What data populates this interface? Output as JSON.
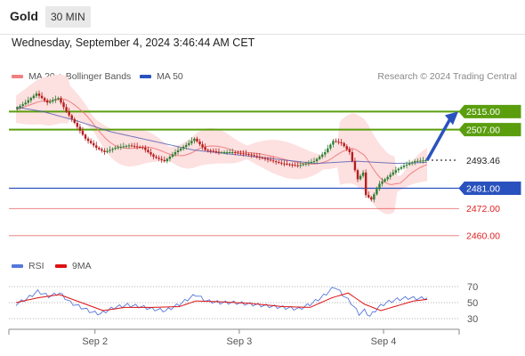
{
  "header": {
    "title": "Gold",
    "timeframe": "30 MIN"
  },
  "datetime": "Wednesday, September 4, 2024 3:46:44 AM CET",
  "legend": {
    "ma20": "MA 20 + Bollinger Bands",
    "ma50": "MA 50",
    "rsi": "RSI",
    "ma9": "9MA",
    "credit": "Research © 2024 Trading Central"
  },
  "colors": {
    "resistance": "#5a9e0e",
    "support": "#2a52be",
    "minor_support": "#e02020",
    "ma20": "#f08080",
    "ma50": "#4d5bb0",
    "bollinger_fill": "#fde0e0",
    "candle_up": "#2e7d32",
    "candle_down": "#b71c1c",
    "rsi": "#5577dd",
    "ma9": "#dd1111",
    "arrow": "#2a52be"
  },
  "chart_data": {
    "type": "candlestick",
    "y_range": [
      2452,
      2527
    ],
    "levels": [
      {
        "label": "2515.00",
        "value": 2515.0,
        "kind": "resistance"
      },
      {
        "label": "2507.00",
        "value": 2507.0,
        "kind": "resistance"
      },
      {
        "label": "2493.46",
        "value": 2493.46,
        "kind": "last"
      },
      {
        "label": "2481.00",
        "value": 2481.0,
        "kind": "support"
      },
      {
        "label": "2472.00",
        "value": 2472.0,
        "kind": "minor_support"
      },
      {
        "label": "2460.00",
        "value": 2460.0,
        "kind": "minor_support"
      }
    ],
    "x_ticks": [
      "Sep 2",
      "Sep 3",
      "Sep 4"
    ],
    "price_path": [
      [
        0,
        2516
      ],
      [
        4,
        2519
      ],
      [
        8,
        2523
      ],
      [
        12,
        2519
      ],
      [
        16,
        2521
      ],
      [
        19,
        2515
      ],
      [
        22,
        2510
      ],
      [
        26,
        2503
      ],
      [
        30,
        2499
      ],
      [
        33,
        2497
      ],
      [
        37,
        2499
      ],
      [
        42,
        2500
      ],
      [
        47,
        2499
      ],
      [
        51,
        2495
      ],
      [
        55,
        2493
      ],
      [
        59,
        2497
      ],
      [
        64,
        2501
      ],
      [
        66,
        2503
      ],
      [
        70,
        2498
      ],
      [
        75,
        2497
      ],
      [
        80,
        2497
      ],
      [
        86,
        2496
      ],
      [
        92,
        2494
      ],
      [
        98,
        2492
      ],
      [
        104,
        2491
      ],
      [
        110,
        2493
      ],
      [
        114,
        2497
      ],
      [
        117,
        2502
      ],
      [
        120,
        2501
      ],
      [
        123,
        2497
      ],
      [
        126,
        2485
      ],
      [
        128,
        2488
      ],
      [
        129,
        2478
      ],
      [
        131,
        2476
      ],
      [
        134,
        2483
      ],
      [
        137,
        2486
      ],
      [
        140,
        2489
      ],
      [
        143,
        2491
      ],
      [
        147,
        2493
      ],
      [
        151,
        2493.46
      ]
    ],
    "ma50_path": [
      [
        0,
        2517
      ],
      [
        10,
        2515
      ],
      [
        22,
        2511
      ],
      [
        35,
        2506
      ],
      [
        50,
        2502
      ],
      [
        65,
        2498
      ],
      [
        80,
        2496
      ],
      [
        95,
        2494
      ],
      [
        110,
        2492
      ],
      [
        125,
        2493
      ],
      [
        140,
        2492
      ],
      [
        151,
        2492.5
      ]
    ],
    "rsi_axis": {
      "range": [
        20,
        80
      ],
      "ticks": [
        30,
        50,
        70
      ]
    },
    "rsi_path": [
      [
        0,
        48
      ],
      [
        4,
        55
      ],
      [
        8,
        64
      ],
      [
        12,
        58
      ],
      [
        16,
        62
      ],
      [
        20,
        50
      ],
      [
        24,
        44
      ],
      [
        28,
        38
      ],
      [
        31,
        36
      ],
      [
        36,
        44
      ],
      [
        41,
        47
      ],
      [
        46,
        45
      ],
      [
        50,
        42
      ],
      [
        55,
        40
      ],
      [
        60,
        48
      ],
      [
        64,
        56
      ],
      [
        66,
        60
      ],
      [
        70,
        52
      ],
      [
        75,
        50
      ],
      [
        80,
        50
      ],
      [
        86,
        48
      ],
      [
        92,
        46
      ],
      [
        98,
        44
      ],
      [
        104,
        42
      ],
      [
        108,
        48
      ],
      [
        112,
        56
      ],
      [
        115,
        64
      ],
      [
        117,
        70
      ],
      [
        120,
        60
      ],
      [
        123,
        50
      ],
      [
        126,
        36
      ],
      [
        128,
        40
      ],
      [
        130,
        33
      ],
      [
        133,
        44
      ],
      [
        136,
        50
      ],
      [
        140,
        54
      ],
      [
        144,
        56
      ],
      [
        148,
        55
      ],
      [
        151,
        56
      ]
    ],
    "ma9_path": [
      [
        0,
        50
      ],
      [
        8,
        56
      ],
      [
        16,
        60
      ],
      [
        24,
        50
      ],
      [
        32,
        40
      ],
      [
        40,
        44
      ],
      [
        50,
        44
      ],
      [
        60,
        45
      ],
      [
        66,
        52
      ],
      [
        75,
        51
      ],
      [
        86,
        49
      ],
      [
        98,
        45
      ],
      [
        108,
        44
      ],
      [
        116,
        56
      ],
      [
        122,
        62
      ],
      [
        128,
        48
      ],
      [
        134,
        40
      ],
      [
        140,
        46
      ],
      [
        146,
        52
      ],
      [
        151,
        54
      ]
    ],
    "projection": {
      "from": 2493.46,
      "to": 2515.0
    }
  }
}
